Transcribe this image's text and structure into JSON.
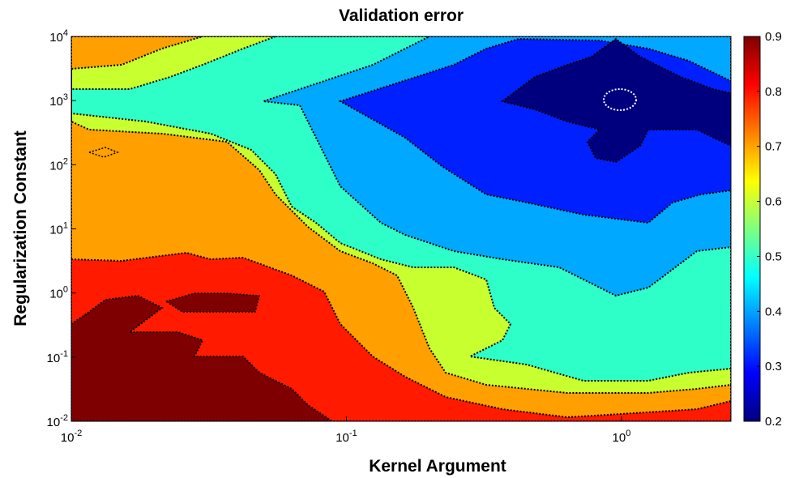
{
  "chart_data": {
    "type": "contour",
    "title": "Validation error",
    "xlabel": "Kernel Argument",
    "ylabel": "Regularization Constant",
    "x_scale": "log",
    "y_scale": "log",
    "xlim": [
      0.01,
      2.5
    ],
    "ylim": [
      0.01,
      10000
    ],
    "x_ticks": [
      {
        "value": 0.01,
        "base": "10",
        "exp": "-2"
      },
      {
        "value": 0.1,
        "base": "10",
        "exp": "-1"
      },
      {
        "value": 1,
        "base": "10",
        "exp": "0"
      }
    ],
    "y_ticks": [
      {
        "value": 0.01,
        "base": "10",
        "exp": "-2"
      },
      {
        "value": 0.1,
        "base": "10",
        "exp": "-1"
      },
      {
        "value": 1,
        "base": "10",
        "exp": "0"
      },
      {
        "value": 10,
        "base": "10",
        "exp": "1"
      },
      {
        "value": 100,
        "base": "10",
        "exp": "2"
      },
      {
        "value": 1000,
        "base": "10",
        "exp": "3"
      },
      {
        "value": 10000,
        "base": "10",
        "exp": "4"
      }
    ],
    "colorbar": {
      "min": 0.2,
      "max": 0.9,
      "ticks": [
        "0.2",
        "0.3",
        "0.4",
        "0.5",
        "0.6",
        "0.7",
        "0.8",
        "0.9"
      ],
      "colormap": "jet",
      "placement": "right"
    },
    "contour_levels": [
      0.2,
      0.3,
      0.4,
      0.5,
      0.6,
      0.7,
      0.8,
      0.9
    ],
    "level_colors": [
      "#00007F",
      "#0020FF",
      "#00A8FF",
      "#2EFFC8",
      "#C8FF2E",
      "#FFA000",
      "#FF1A00",
      "#7F0000"
    ],
    "minimum_marker": {
      "x": 1.0,
      "y": 1000,
      "style": "white dotted ellipse"
    },
    "regions": [
      {
        "level": 0.9,
        "description": "dark red, low kernel argument and low regularization"
      },
      {
        "level": 0.8,
        "description": "red band"
      },
      {
        "level": 0.7,
        "description": "orange band"
      },
      {
        "level": 0.6,
        "description": "yellow-green band"
      },
      {
        "level": 0.5,
        "description": "cyan-green band"
      },
      {
        "level": 0.4,
        "description": "light blue band"
      },
      {
        "level": 0.3,
        "description": "blue region upper right"
      },
      {
        "level": 0.2,
        "description": "dark blue minimum region near kernel 1, regularization 1000"
      }
    ]
  }
}
